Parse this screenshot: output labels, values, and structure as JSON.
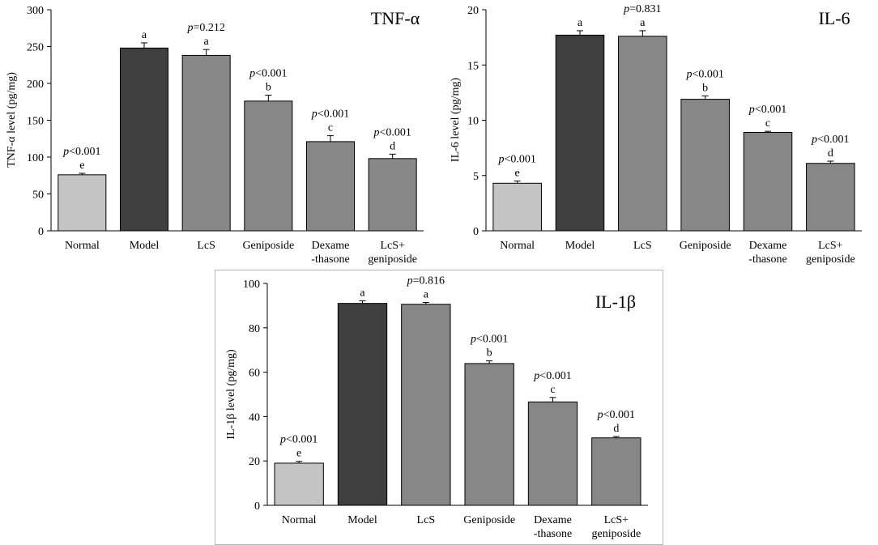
{
  "chart_data": [
    {
      "type": "bar",
      "title": "TNF-α",
      "ylabel": "TNF-α level (pg/mg)",
      "xlabel": "",
      "ylim": [
        0,
        300
      ],
      "yticks": [
        0,
        50,
        100,
        150,
        200,
        250,
        300
      ],
      "categories": [
        [
          "Normal"
        ],
        [
          "Model"
        ],
        [
          "LcS"
        ],
        [
          "Geniposide"
        ],
        [
          "Dexame",
          "-thasone"
        ],
        [
          "LcS+",
          "geniposide"
        ]
      ],
      "values": [
        76,
        248,
        238,
        176,
        121,
        98
      ],
      "errors": [
        2,
        7,
        8,
        8,
        8,
        6
      ],
      "letters": [
        "e",
        "a",
        "a",
        "b",
        "c",
        "d"
      ],
      "pvalues": [
        "<0.001",
        "",
        "=0.212",
        "<0.001",
        "<0.001",
        "<0.001"
      ],
      "colors": [
        "#c4c4c4",
        "#3f3f3f",
        "#878787",
        "#878787",
        "#878787",
        "#878787"
      ]
    },
    {
      "type": "bar",
      "title": "IL-6",
      "ylabel": "IL-6 level (pg/mg)",
      "xlabel": "",
      "ylim": [
        0,
        20
      ],
      "yticks": [
        0,
        5,
        10,
        15,
        20
      ],
      "categories": [
        [
          "Normal"
        ],
        [
          "Model"
        ],
        [
          "LcS"
        ],
        [
          "Geniposide"
        ],
        [
          "Dexame",
          "-thasone"
        ],
        [
          "LcS+",
          "geniposide"
        ]
      ],
      "values": [
        4.3,
        17.7,
        17.6,
        11.9,
        8.9,
        6.1
      ],
      "errors": [
        0.2,
        0.4,
        0.5,
        0.3,
        0.1,
        0.2
      ],
      "letters": [
        "e",
        "a",
        "a",
        "b",
        "c",
        "d"
      ],
      "pvalues": [
        "<0.001",
        "",
        "=0.831",
        "<0.001",
        "<0.001",
        "<0.001"
      ],
      "colors": [
        "#c4c4c4",
        "#3f3f3f",
        "#878787",
        "#878787",
        "#878787",
        "#878787"
      ]
    },
    {
      "type": "bar",
      "title": "IL-1β",
      "ylabel": "IL-1β level (pg/mg)",
      "xlabel": "",
      "ylim": [
        0,
        100
      ],
      "yticks": [
        0,
        20,
        40,
        60,
        80,
        100
      ],
      "categories": [
        [
          "Normal"
        ],
        [
          "Model"
        ],
        [
          "LcS"
        ],
        [
          "Geniposide"
        ],
        [
          "Dexame",
          "-thasone"
        ],
        [
          "LcS+",
          "geniposide"
        ]
      ],
      "values": [
        19,
        91,
        90.6,
        63.9,
        46.6,
        30.4
      ],
      "errors": [
        0.8,
        1.2,
        0.8,
        1.2,
        2.0,
        0.6
      ],
      "letters": [
        "e",
        "a",
        "a",
        "b",
        "c",
        "d"
      ],
      "pvalues": [
        "<0.001",
        "",
        "=0.816",
        "<0.001",
        "<0.001",
        "<0.001"
      ],
      "colors": [
        "#c4c4c4",
        "#3f3f3f",
        "#878787",
        "#878787",
        "#878787",
        "#878787"
      ]
    }
  ],
  "p_symbol": "p"
}
